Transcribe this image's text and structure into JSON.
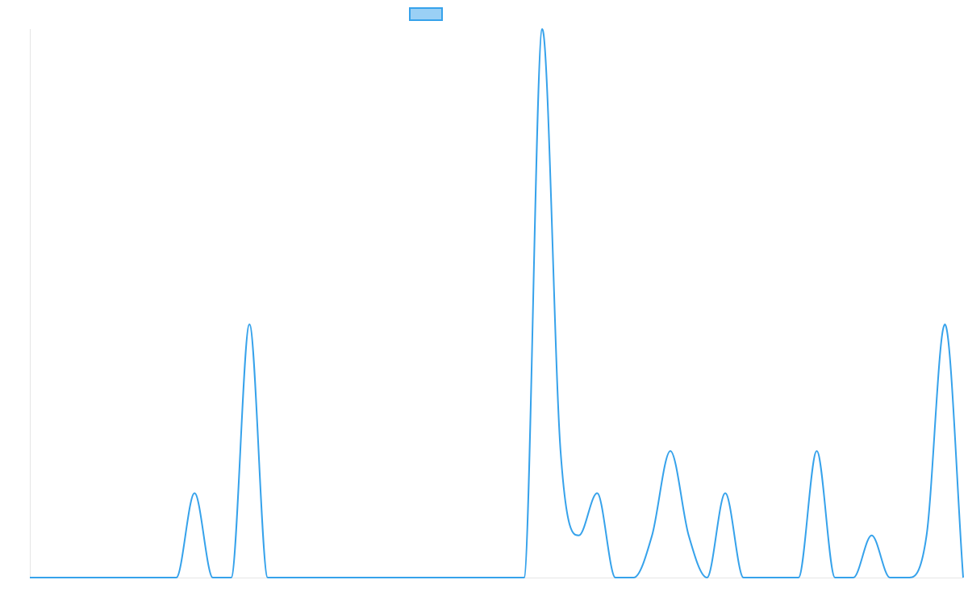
{
  "chart_data": {
    "type": "line",
    "categories": [
      null,
      null,
      null,
      null,
      null,
      null,
      null,
      null,
      null,
      null,
      null,
      null,
      null,
      null,
      null,
      null,
      null,
      null,
      null,
      null,
      null,
      null,
      null,
      null,
      null,
      null,
      null,
      null,
      null,
      null,
      null,
      null,
      null,
      null,
      null,
      null,
      null,
      null,
      null,
      null,
      null,
      null,
      null,
      null,
      null,
      null,
      null,
      null,
      null,
      null,
      null,
      null
    ],
    "series": [
      {
        "color": "#36a2eb",
        "fill": "#9ad0f5",
        "values": [
          0,
          0,
          0,
          0,
          0,
          0,
          0,
          0,
          0,
          2,
          0,
          0,
          6,
          0,
          0,
          0,
          0,
          0,
          0,
          0,
          0,
          0,
          0,
          0,
          0,
          0,
          0,
          0,
          13,
          3,
          1,
          2,
          0,
          0,
          1,
          3,
          1,
          0,
          2,
          0,
          0,
          0,
          0,
          3,
          0,
          0,
          1,
          0,
          0,
          1,
          6,
          0
        ]
      }
    ],
    "ylim": [
      0,
      13
    ],
    "legend": "top"
  }
}
